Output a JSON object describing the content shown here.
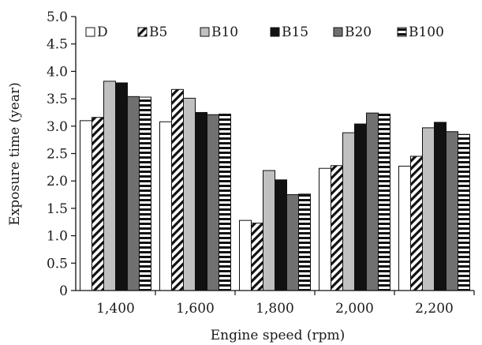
{
  "chart_data": {
    "type": "bar",
    "xlabel": "Engine speed (rpm)",
    "ylabel": "Exposure time (year)",
    "ylim": [
      0,
      5.0
    ],
    "yticks": [
      "0",
      "0.5",
      "1.0",
      "1.5",
      "2.0",
      "2.5",
      "3.0",
      "3.5",
      "4.0",
      "4.5",
      "5.0"
    ],
    "grid": false,
    "legend_position": "top",
    "categories": [
      "1,400",
      "1,600",
      "1,800",
      "2,000",
      "2,200"
    ],
    "series": [
      {
        "name": "D",
        "pattern": "white",
        "values": [
          3.1,
          3.08,
          1.28,
          2.23,
          2.27
        ]
      },
      {
        "name": "B5",
        "pattern": "diagonal",
        "values": [
          3.16,
          3.67,
          1.23,
          2.28,
          2.45
        ]
      },
      {
        "name": "B10",
        "pattern": "light-gray",
        "values": [
          3.82,
          3.51,
          2.19,
          2.88,
          2.97
        ]
      },
      {
        "name": "B15",
        "pattern": "black",
        "values": [
          3.79,
          3.25,
          2.02,
          3.04,
          3.07
        ]
      },
      {
        "name": "B20",
        "pattern": "dark-gray",
        "values": [
          3.54,
          3.21,
          1.75,
          3.24,
          2.9
        ]
      },
      {
        "name": "B100",
        "pattern": "horizontal",
        "values": [
          3.53,
          3.22,
          1.76,
          3.22,
          2.85
        ]
      }
    ],
    "colors": {
      "light-gray": "#c0c0c0",
      "black": "#111111",
      "dark-gray": "#707070",
      "stroke": "#111111"
    }
  }
}
